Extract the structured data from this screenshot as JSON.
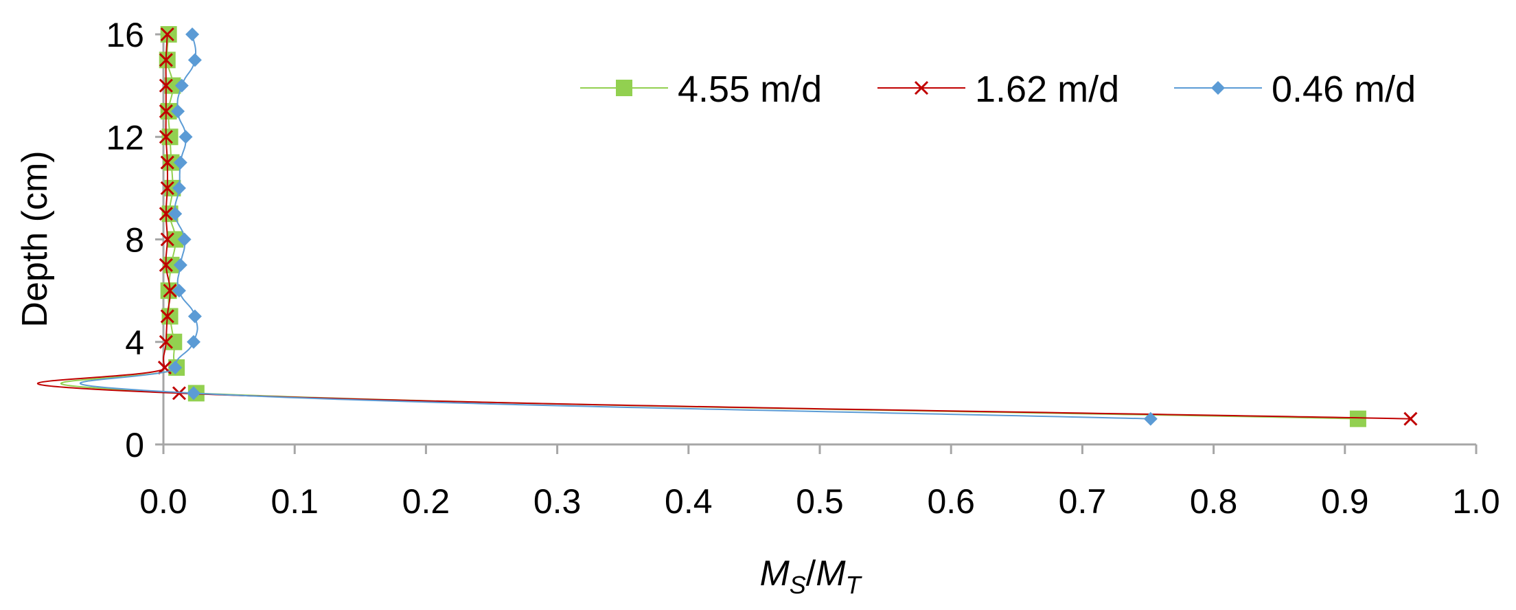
{
  "chart_data": {
    "type": "line",
    "xlabel": {
      "main": "M",
      "sub1": "S",
      "sep": "/",
      "main2": "M",
      "sub2": "T"
    },
    "ylabel": "Depth (cm)",
    "xlim": [
      0,
      1.0
    ],
    "ylim": [
      0,
      16
    ],
    "x_ticks": [
      "0.0",
      "0.1",
      "0.2",
      "0.3",
      "0.4",
      "0.5",
      "0.6",
      "0.7",
      "0.8",
      "0.9",
      "1.0"
    ],
    "y_ticks": [
      "0",
      "4",
      "8",
      "12",
      "16"
    ],
    "legend_position": "top-right",
    "grid": false,
    "series": [
      {
        "name": "4.55 m/d",
        "color": "#92d050",
        "marker": "square",
        "points": [
          {
            "x": 0.91,
            "y": 1
          },
          {
            "x": 0.025,
            "y": 2
          },
          {
            "x": 0.01,
            "y": 3
          },
          {
            "x": 0.008,
            "y": 4
          },
          {
            "x": 0.005,
            "y": 5
          },
          {
            "x": 0.004,
            "y": 6
          },
          {
            "x": 0.006,
            "y": 7
          },
          {
            "x": 0.009,
            "y": 8
          },
          {
            "x": 0.005,
            "y": 9
          },
          {
            "x": 0.007,
            "y": 10
          },
          {
            "x": 0.006,
            "y": 11
          },
          {
            "x": 0.005,
            "y": 12
          },
          {
            "x": 0.004,
            "y": 13
          },
          {
            "x": 0.007,
            "y": 14
          },
          {
            "x": 0.003,
            "y": 15
          },
          {
            "x": 0.004,
            "y": 16
          }
        ]
      },
      {
        "name": "1.62 m/d",
        "color": "#c00000",
        "marker": "x",
        "points": [
          {
            "x": 0.95,
            "y": 1
          },
          {
            "x": 0.012,
            "y": 2
          },
          {
            "x": 0.001,
            "y": 3
          },
          {
            "x": 0.002,
            "y": 4
          },
          {
            "x": 0.003,
            "y": 5
          },
          {
            "x": 0.005,
            "y": 6
          },
          {
            "x": 0.002,
            "y": 7
          },
          {
            "x": 0.003,
            "y": 8
          },
          {
            "x": 0.002,
            "y": 9
          },
          {
            "x": 0.003,
            "y": 10
          },
          {
            "x": 0.003,
            "y": 11
          },
          {
            "x": 0.002,
            "y": 12
          },
          {
            "x": 0.002,
            "y": 13
          },
          {
            "x": 0.002,
            "y": 14
          },
          {
            "x": 0.002,
            "y": 15
          },
          {
            "x": 0.003,
            "y": 16
          }
        ]
      },
      {
        "name": "0.46 m/d",
        "color": "#5b9bd5",
        "marker": "diamond",
        "points": [
          {
            "x": 0.752,
            "y": 1
          },
          {
            "x": 0.023,
            "y": 2
          },
          {
            "x": 0.009,
            "y": 3
          },
          {
            "x": 0.023,
            "y": 4
          },
          {
            "x": 0.024,
            "y": 5
          },
          {
            "x": 0.012,
            "y": 6
          },
          {
            "x": 0.013,
            "y": 7
          },
          {
            "x": 0.016,
            "y": 8
          },
          {
            "x": 0.009,
            "y": 9
          },
          {
            "x": 0.012,
            "y": 10
          },
          {
            "x": 0.013,
            "y": 11
          },
          {
            "x": 0.017,
            "y": 12
          },
          {
            "x": 0.011,
            "y": 13
          },
          {
            "x": 0.014,
            "y": 14
          },
          {
            "x": 0.024,
            "y": 15
          },
          {
            "x": 0.022,
            "y": 16
          }
        ]
      }
    ]
  }
}
